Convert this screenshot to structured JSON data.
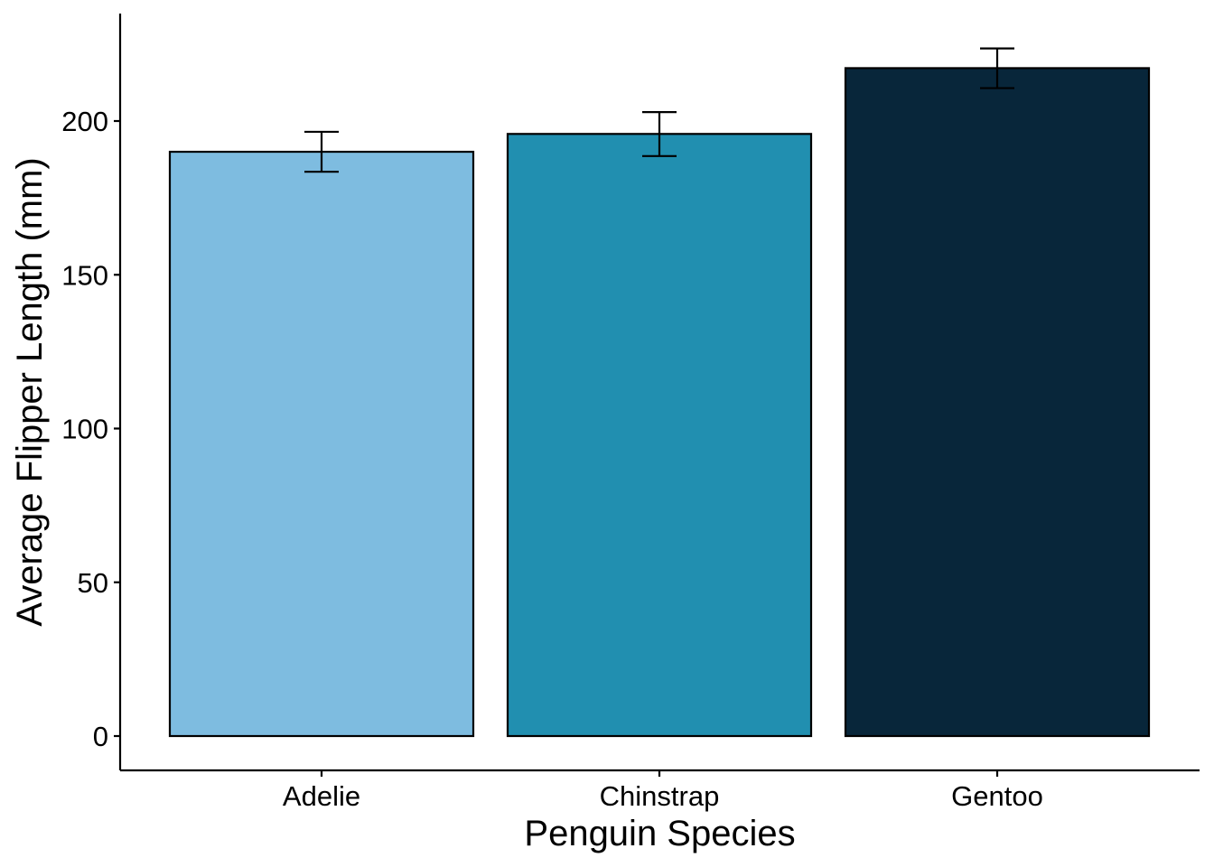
{
  "chart_data": {
    "type": "bar",
    "title": "",
    "xlabel": "Penguin Species",
    "ylabel": "Average Flipper Length (mm)",
    "categories": [
      "Adelie",
      "Chinstrap",
      "Gentoo"
    ],
    "values": [
      190.0,
      195.8,
      217.2
    ],
    "error_bars": [
      {
        "lower": 183.5,
        "upper": 196.5
      },
      {
        "lower": 188.6,
        "upper": 202.9
      },
      {
        "lower": 210.7,
        "upper": 223.6
      }
    ],
    "colors": [
      "#7EBCE0",
      "#218FB0",
      "#08263A"
    ],
    "ylim": [
      -11,
      218
    ],
    "yticks": [
      0,
      50,
      100,
      150,
      200
    ],
    "grid": false,
    "legend": "none"
  }
}
